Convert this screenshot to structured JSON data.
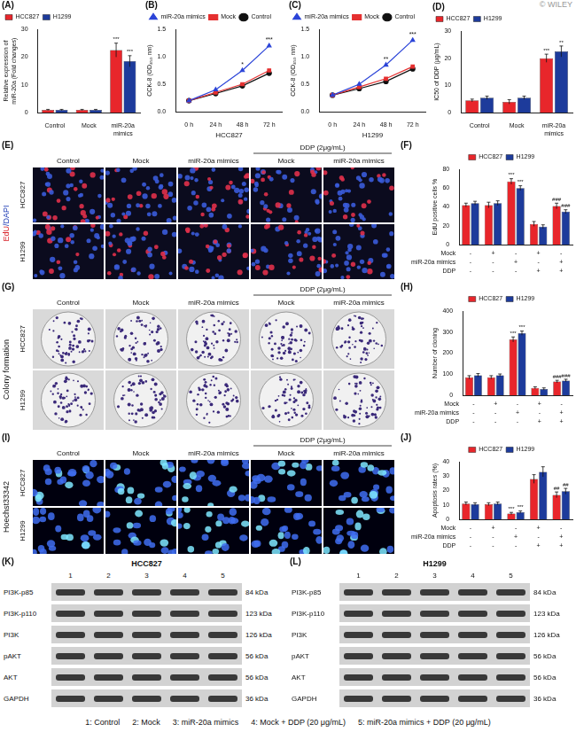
{
  "watermark": "© WILEY",
  "chart_data": [
    {
      "label": "(A)",
      "type": "bar",
      "categories": [
        "Control",
        "Mock",
        "miR-20a mimics"
      ],
      "ylabel": [
        "Relative expression of",
        "miR-20a (Fold changes)"
      ],
      "ylim": [
        0,
        30
      ],
      "yticks": [
        0,
        10,
        20,
        30
      ],
      "grid": false,
      "legend": "top-left",
      "series": [
        {
          "name": "HCC827",
          "color": "#e8262b",
          "values": [
            1,
            1,
            22.5
          ],
          "errors": [
            0.2,
            0.2,
            2.5
          ],
          "significance": [
            null,
            null,
            "***"
          ]
        },
        {
          "name": "H1299",
          "color": "#1d3b9b",
          "values": [
            1,
            1,
            18.5
          ],
          "errors": [
            0.2,
            0.2,
            2
          ],
          "significance": [
            null,
            null,
            "***"
          ]
        }
      ]
    },
    {
      "label": "(B)",
      "type": "line",
      "categories": [
        "0 h",
        "24 h",
        "48 h",
        "72 h"
      ],
      "xlabel": "HCC827",
      "ylabel": "CCK-8 (OD₄₅₀ nm)",
      "ylim": [
        0,
        1.5
      ],
      "yticks": [
        {
          "value": 0,
          "label": "0.0"
        },
        0.5,
        {
          "value": 1,
          "label": "1.0"
        },
        1.5
      ],
      "grid": false,
      "legend": "top-left",
      "significance": [
        null,
        null,
        "*",
        "***"
      ],
      "series": [
        {
          "name": "miR-20a mimics",
          "color": "#2b44d8",
          "marker": "triangle",
          "values": [
            0.2,
            0.4,
            0.75,
            1.2
          ]
        },
        {
          "name": "Mock",
          "color": "#e53030",
          "marker": "square",
          "values": [
            0.2,
            0.35,
            0.5,
            0.75
          ]
        },
        {
          "name": "Control",
          "color": "#111111",
          "marker": "circle",
          "values": [
            0.2,
            0.33,
            0.47,
            0.7
          ]
        }
      ]
    },
    {
      "label": "(C)",
      "type": "line",
      "categories": [
        "0 h",
        "24 h",
        "48 h",
        "72 h"
      ],
      "xlabel": "H1299",
      "ylabel": "CCK-8 (OD₄₅₀ nm)",
      "ylim": [
        0,
        1.5
      ],
      "yticks": [
        {
          "value": 0,
          "label": "0.0"
        },
        0.5,
        {
          "value": 1,
          "label": "1.0"
        },
        1.5
      ],
      "grid": false,
      "legend": "top-left",
      "significance": [
        null,
        null,
        "**",
        "***"
      ],
      "series": [
        {
          "name": "miR-20a mimics",
          "color": "#2b44d8",
          "marker": "triangle",
          "values": [
            0.3,
            0.5,
            0.85,
            1.3
          ]
        },
        {
          "name": "Mock",
          "color": "#e53030",
          "marker": "square",
          "values": [
            0.3,
            0.45,
            0.6,
            0.82
          ]
        },
        {
          "name": "Control",
          "color": "#111111",
          "marker": "circle",
          "values": [
            0.3,
            0.42,
            0.55,
            0.78
          ]
        }
      ]
    },
    {
      "label": "(D)",
      "type": "bar",
      "categories": [
        "Control",
        "Mock",
        "miR-20a mimics"
      ],
      "ylabel": "IC50 of DDP (μg/mL)",
      "ylim": [
        0,
        30
      ],
      "yticks": [
        0,
        10,
        20,
        30
      ],
      "grid": false,
      "legend": "top-left",
      "series": [
        {
          "name": "HCC827",
          "color": "#e8262b",
          "values": [
            4.5,
            4,
            20
          ],
          "errors": [
            0.5,
            0.8,
            1.5
          ],
          "significance": [
            null,
            null,
            "***"
          ]
        },
        {
          "name": "H1299",
          "color": "#1d3b9b",
          "values": [
            5.5,
            5.5,
            22.5
          ],
          "errors": [
            0.6,
            0.6,
            2
          ],
          "significance": [
            null,
            null,
            "**"
          ]
        }
      ]
    },
    {
      "label": "(F)",
      "type": "bar",
      "categories": [
        null,
        null,
        null,
        null,
        null
      ],
      "ylabel": "EdU positive cells %",
      "ylim": [
        0,
        80
      ],
      "yticks": [
        0,
        20,
        40,
        60,
        80
      ],
      "grid": false,
      "legend": "top",
      "treatments": [
        {
          "name": "Mock",
          "values": [
            "-",
            "+",
            "-",
            "+",
            "-"
          ]
        },
        {
          "name": "miR-20a mimics",
          "values": [
            "-",
            "-",
            "+",
            "-",
            "+"
          ]
        },
        {
          "name": "DDP",
          "values": [
            "-",
            "-",
            "-",
            "+",
            "+"
          ]
        }
      ],
      "series": [
        {
          "name": "HCC827",
          "color": "#e8262b",
          "values": [
            42,
            42,
            67,
            22,
            41
          ],
          "errors": [
            2,
            3,
            3,
            2.5,
            3
          ],
          "significance": [
            null,
            null,
            "***",
            null,
            "###"
          ]
        },
        {
          "name": "H1299",
          "color": "#1d3b9b",
          "values": [
            44,
            44,
            60,
            19,
            35
          ],
          "errors": [
            2,
            2.5,
            2.5,
            2,
            2
          ],
          "significance": [
            null,
            null,
            "***",
            null,
            "###"
          ]
        }
      ]
    },
    {
      "label": "(H)",
      "type": "bar",
      "categories": [
        null,
        null,
        null,
        null,
        null
      ],
      "ylabel": "Number of cloning",
      "ylim": [
        0,
        400
      ],
      "yticks": [
        0,
        100,
        200,
        300,
        400
      ],
      "grid": false,
      "legend": "top",
      "treatments": [
        {
          "name": "Mock",
          "values": [
            "-",
            "+",
            "-",
            "+",
            "-"
          ]
        },
        {
          "name": "miR-20a mimics",
          "values": [
            "-",
            "-",
            "+",
            "-",
            "+"
          ]
        },
        {
          "name": "DDP",
          "values": [
            "-",
            "-",
            "-",
            "+",
            "+"
          ]
        }
      ],
      "series": [
        {
          "name": "HCC827",
          "color": "#e8262b",
          "values": [
            85,
            85,
            265,
            35,
            65
          ],
          "errors": [
            8,
            8,
            12,
            5,
            6
          ],
          "significance": [
            null,
            null,
            "***",
            null,
            "###"
          ]
        },
        {
          "name": "H1299",
          "color": "#1d3b9b",
          "values": [
            95,
            95,
            295,
            30,
            70
          ],
          "errors": [
            8,
            6,
            10,
            5,
            6
          ],
          "significance": [
            null,
            null,
            "***",
            null,
            "###"
          ]
        }
      ]
    },
    {
      "label": "(J)",
      "type": "bar",
      "categories": [
        null,
        null,
        null,
        null,
        null
      ],
      "ylabel": "Apoptosis rates (%)",
      "ylim": [
        0,
        40
      ],
      "yticks": [
        0,
        10,
        20,
        30,
        40
      ],
      "grid": false,
      "legend": "top",
      "treatments": [
        {
          "name": "Mock",
          "values": [
            "-",
            "+",
            "-",
            "+",
            "-"
          ]
        },
        {
          "name": "miR-20a mimics",
          "values": [
            "-",
            "-",
            "+",
            "-",
            "+"
          ]
        },
        {
          "name": "DDP",
          "values": [
            "-",
            "-",
            "-",
            "+",
            "+"
          ]
        }
      ],
      "series": [
        {
          "name": "HCC827",
          "color": "#e8262b",
          "values": [
            11,
            10.5,
            4,
            28,
            17
          ],
          "errors": [
            1,
            1,
            0.8,
            3,
            2
          ],
          "significance": [
            null,
            null,
            "***",
            null,
            "##"
          ]
        },
        {
          "name": "H1299",
          "color": "#1d3b9b",
          "values": [
            10.5,
            11,
            5,
            33,
            19.5
          ],
          "errors": [
            1,
            1,
            0.8,
            3.5,
            2
          ],
          "significance": [
            null,
            null,
            "***",
            null,
            "##"
          ]
        }
      ]
    }
  ],
  "image_panels": [
    {
      "label": "(E)",
      "type": "fluorescence",
      "stain": "EdU/DAPI",
      "rows": [
        "HCC827",
        "H1299"
      ],
      "columns": [
        "Control",
        "Mock",
        "miR-20a mimics",
        "Mock",
        "miR-20a mimics"
      ],
      "group": {
        "text": "DDP (2μg/mL)",
        "columns": [
          3,
          4
        ]
      }
    },
    {
      "label": "(G)",
      "type": "plate",
      "stain": "Colony formation",
      "rows": [
        "HCC827",
        "H1299"
      ],
      "columns": [
        "Control",
        "Mock",
        "miR-20a mimics",
        "Mock",
        "miR-20a mimics"
      ],
      "group": {
        "text": "DDP (2μg/mL)",
        "columns": [
          3,
          4
        ]
      }
    },
    {
      "label": "(I)",
      "type": "nuclei",
      "stain": "Hoechst33342",
      "rows": [
        "HCC827",
        "H1299"
      ],
      "columns": [
        "Control",
        "Mock",
        "miR-20a mimics",
        "Mock",
        "miR-20a mimics"
      ],
      "group": {
        "text": "DDP (2μg/mL)",
        "columns": [
          3,
          4
        ]
      }
    }
  ],
  "blots": [
    {
      "label": "(K)",
      "title": "HCC827",
      "lanes": [
        1,
        2,
        3,
        4,
        5
      ],
      "bands": [
        {
          "name": "PI3K-p85",
          "size": "84 kDa"
        },
        {
          "name": "PI3K-p110",
          "size": "123 kDa"
        },
        {
          "name": "PI3K",
          "size": "126 kDa"
        },
        {
          "name": "pAKT",
          "size": "56 kDa"
        },
        {
          "name": "AKT",
          "size": "56 kDa"
        },
        {
          "name": "GAPDH",
          "size": "36 kDa"
        }
      ]
    },
    {
      "label": "(L)",
      "title": "H1299",
      "lanes": [
        1,
        2,
        3,
        4,
        5
      ],
      "bands": [
        {
          "name": "PI3K-p85",
          "size": "84 kDa"
        },
        {
          "name": "PI3K-p110",
          "size": "123 kDa"
        },
        {
          "name": "PI3K",
          "size": "126 kDa"
        },
        {
          "name": "pAKT",
          "size": "56 kDa"
        },
        {
          "name": "AKT",
          "size": "56 kDa"
        },
        {
          "name": "GAPDH",
          "size": "36 kDa"
        }
      ]
    }
  ],
  "lane_key": [
    "1: Control",
    "2: Mock",
    "3: miR-20a mimics",
    "4: Mock + DDP (20 μg/mL)",
    "5: miR-20a mimics + DDP (20 μg/mL)"
  ]
}
